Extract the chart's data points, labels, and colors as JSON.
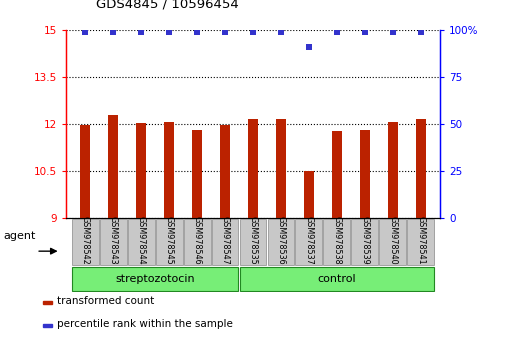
{
  "title": "GDS4845 / 10596454",
  "samples": [
    "GSM978542",
    "GSM978543",
    "GSM978544",
    "GSM978545",
    "GSM978546",
    "GSM978547",
    "GSM978535",
    "GSM978536",
    "GSM978537",
    "GSM978538",
    "GSM978539",
    "GSM978540",
    "GSM978541"
  ],
  "bar_values": [
    11.98,
    12.28,
    12.02,
    12.06,
    11.8,
    11.95,
    12.15,
    12.15,
    10.5,
    11.77,
    11.8,
    12.05,
    12.15
  ],
  "percentile_values": [
    99,
    99,
    99,
    99,
    99,
    99,
    99,
    99,
    91,
    99,
    99,
    99,
    99
  ],
  "bar_color": "#bb2200",
  "dot_color": "#3333cc",
  "ylim_left": [
    9,
    15
  ],
  "ylim_right": [
    0,
    100
  ],
  "yticks_left": [
    9,
    10.5,
    12,
    13.5,
    15
  ],
  "ytick_labels_left": [
    "9",
    "10.5",
    "12",
    "13.5",
    "15"
  ],
  "yticks_right": [
    0,
    25,
    50,
    75,
    100
  ],
  "ytick_labels_right": [
    "0",
    "25",
    "50",
    "75",
    "100%"
  ],
  "agent_label": "agent",
  "legend_items": [
    {
      "color": "#bb2200",
      "label": "transformed count"
    },
    {
      "color": "#3333cc",
      "label": "percentile rank within the sample"
    }
  ],
  "bar_bottom": 9.0,
  "tick_area_bg": "#c8c8c8",
  "group_area_bg": "#77ee77",
  "group_defs": [
    {
      "label": "streptozotocin",
      "start": 0,
      "end": 5
    },
    {
      "label": "control",
      "start": 6,
      "end": 12
    }
  ],
  "bar_width": 0.35
}
